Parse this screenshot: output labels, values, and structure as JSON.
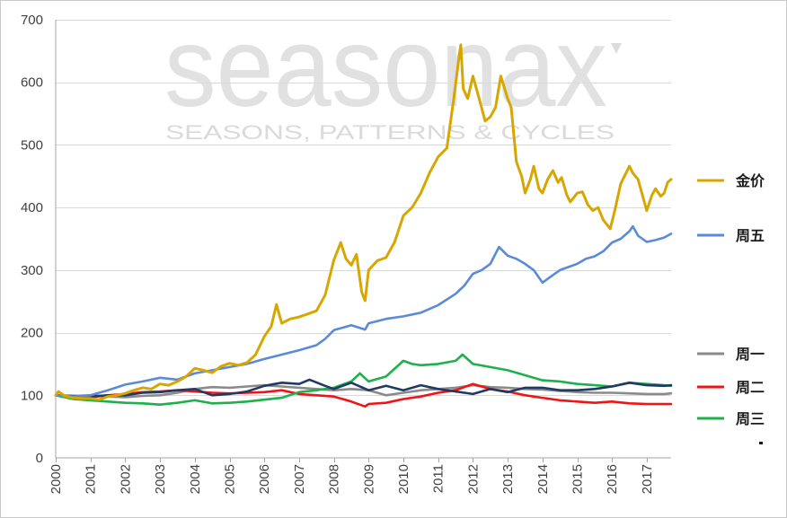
{
  "watermark": {
    "logo": "seasonax",
    "tagline": "SEASONS, PATTERNS & CYCLES"
  },
  "chart_data": {
    "type": "line",
    "title": "",
    "xlabel": "",
    "ylabel": "",
    "xlim": [
      2000,
      2017.7
    ],
    "ylim": [
      0,
      700
    ],
    "y_ticks": [
      0,
      100,
      200,
      300,
      400,
      500,
      600,
      700
    ],
    "x_ticks": [
      "2000",
      "2001",
      "2002",
      "2003",
      "2004",
      "2005",
      "2006",
      "2007",
      "2008",
      "2009",
      "2010",
      "2011",
      "2012",
      "2013",
      "2014",
      "2015",
      "2016",
      "2017"
    ],
    "grid": "horizontal",
    "legend_position": "right",
    "series": [
      {
        "name": "金价",
        "color": "#D8A600",
        "x": [
          2000.0,
          2000.08,
          2000.25,
          2000.5,
          2000.75,
          2001.0,
          2001.25,
          2001.5,
          2001.75,
          2002.0,
          2002.25,
          2002.5,
          2002.75,
          2003.0,
          2003.25,
          2003.5,
          2003.75,
          2004.0,
          2004.25,
          2004.5,
          2004.75,
          2005.0,
          2005.25,
          2005.5,
          2005.75,
          2006.0,
          2006.2,
          2006.35,
          2006.5,
          2006.75,
          2007.0,
          2007.25,
          2007.5,
          2007.75,
          2008.0,
          2008.2,
          2008.35,
          2008.5,
          2008.65,
          2008.8,
          2008.9,
          2009.0,
          2009.25,
          2009.5,
          2009.75,
          2010.0,
          2010.25,
          2010.5,
          2010.75,
          2011.0,
          2011.25,
          2011.45,
          2011.6,
          2011.65,
          2011.72,
          2011.85,
          2012.0,
          2012.2,
          2012.35,
          2012.5,
          2012.65,
          2012.8,
          2013.0,
          2013.1,
          2013.25,
          2013.4,
          2013.5,
          2013.65,
          2013.75,
          2013.9,
          2014.0,
          2014.15,
          2014.3,
          2014.45,
          2014.55,
          2014.7,
          2014.8,
          2015.0,
          2015.15,
          2015.3,
          2015.45,
          2015.6,
          2015.75,
          2015.95,
          2016.1,
          2016.25,
          2016.5,
          2016.6,
          2016.75,
          2016.9,
          2017.0,
          2017.15,
          2017.25,
          2017.4,
          2017.5,
          2017.6,
          2017.7
        ],
        "y": [
          100,
          106,
          99,
          96,
          95,
          95,
          93,
          98,
          100,
          103,
          108,
          112,
          110,
          118,
          116,
          122,
          130,
          143,
          140,
          136,
          146,
          151,
          148,
          152,
          165,
          194,
          210,
          245,
          215,
          222,
          225,
          230,
          235,
          260,
          316,
          344,
          318,
          308,
          325,
          265,
          251,
          300,
          315,
          320,
          345,
          387,
          400,
          423,
          455,
          481,
          495,
          574,
          640,
          660,
          590,
          574,
          610,
          570,
          538,
          545,
          560,
          610,
          574,
          560,
          473,
          450,
          423,
          445,
          466,
          430,
          423,
          445,
          459,
          440,
          448,
          420,
          409,
          423,
          425,
          405,
          395,
          400,
          380,
          366,
          400,
          438,
          466,
          455,
          445,
          415,
          395,
          420,
          430,
          418,
          423,
          440,
          445
        ]
      },
      {
        "name": "周五",
        "color": "#5A8AD8",
        "x": [
          2000.0,
          2000.5,
          2001.0,
          2001.5,
          2002.0,
          2002.5,
          2003.0,
          2003.5,
          2004.0,
          2004.5,
          2005.0,
          2005.5,
          2006.0,
          2006.5,
          2007.0,
          2007.5,
          2007.75,
          2008.0,
          2008.5,
          2008.9,
          2009.0,
          2009.5,
          2010.0,
          2010.5,
          2011.0,
          2011.5,
          2011.75,
          2012.0,
          2012.25,
          2012.5,
          2012.75,
          2013.0,
          2013.25,
          2013.5,
          2013.75,
          2014.0,
          2014.25,
          2014.5,
          2014.75,
          2015.0,
          2015.25,
          2015.5,
          2015.75,
          2016.0,
          2016.25,
          2016.5,
          2016.6,
          2016.75,
          2017.0,
          2017.25,
          2017.5,
          2017.7
        ],
        "y": [
          100,
          98,
          100,
          108,
          117,
          122,
          128,
          125,
          135,
          140,
          145,
          150,
          158,
          165,
          172,
          180,
          190,
          204,
          212,
          205,
          215,
          222,
          226,
          232,
          244,
          262,
          275,
          294,
          300,
          310,
          337,
          323,
          318,
          310,
          300,
          280,
          290,
          300,
          305,
          310,
          318,
          322,
          330,
          344,
          350,
          362,
          370,
          355,
          345,
          348,
          352,
          358
        ]
      },
      {
        "name": "周一",
        "color": "#8A8A8A",
        "x": [
          2000.0,
          2000.5,
          2001.0,
          2001.5,
          2002.0,
          2002.5,
          2003.0,
          2003.5,
          2004.0,
          2004.5,
          2005.0,
          2005.5,
          2006.0,
          2006.5,
          2007.0,
          2007.5,
          2008.0,
          2008.5,
          2009.0,
          2009.5,
          2010.0,
          2010.5,
          2011.0,
          2011.5,
          2012.0,
          2012.5,
          2013.0,
          2013.5,
          2014.0,
          2014.5,
          2015.0,
          2015.5,
          2016.0,
          2016.5,
          2017.0,
          2017.5,
          2017.7
        ],
        "y": [
          100,
          99,
          100,
          98,
          97,
          99,
          100,
          104,
          110,
          113,
          112,
          114,
          116,
          114,
          112,
          110,
          108,
          110,
          108,
          100,
          104,
          108,
          110,
          112,
          116,
          113,
          112,
          110,
          109,
          107,
          105,
          104,
          104,
          103,
          102,
          102,
          103
        ]
      },
      {
        "name": "周二",
        "color": "#F01414",
        "x": [
          2000.0,
          2000.5,
          2001.0,
          2001.5,
          2002.0,
          2002.5,
          2003.0,
          2003.5,
          2004.0,
          2004.5,
          2005.0,
          2005.5,
          2006.0,
          2006.5,
          2007.0,
          2007.5,
          2008.0,
          2008.5,
          2008.9,
          2009.0,
          2009.5,
          2010.0,
          2010.5,
          2011.0,
          2011.5,
          2012.0,
          2012.25,
          2012.5,
          2013.0,
          2013.5,
          2014.0,
          2014.5,
          2015.0,
          2015.5,
          2016.0,
          2016.5,
          2017.0,
          2017.5,
          2017.7
        ],
        "y": [
          100,
          98,
          97,
          100,
          102,
          105,
          106,
          108,
          106,
          104,
          103,
          104,
          105,
          108,
          102,
          100,
          98,
          90,
          82,
          86,
          88,
          94,
          98,
          104,
          108,
          118,
          114,
          110,
          106,
          100,
          96,
          92,
          90,
          88,
          90,
          87,
          86,
          86,
          86
        ]
      },
      {
        "name": "周三",
        "color": "#1DB04B",
        "x": [
          2000.0,
          2000.5,
          2001.0,
          2001.5,
          2002.0,
          2002.5,
          2003.0,
          2003.5,
          2004.0,
          2004.5,
          2005.0,
          2005.5,
          2006.0,
          2006.5,
          2007.0,
          2007.5,
          2008.0,
          2008.5,
          2008.75,
          2009.0,
          2009.5,
          2010.0,
          2010.25,
          2010.5,
          2011.0,
          2011.5,
          2011.7,
          2012.0,
          2012.5,
          2013.0,
          2013.5,
          2014.0,
          2014.5,
          2015.0,
          2015.5,
          2016.0,
          2016.5,
          2017.0,
          2017.5,
          2017.7
        ],
        "y": [
          100,
          94,
          92,
          90,
          88,
          87,
          85,
          88,
          92,
          87,
          88,
          90,
          93,
          96,
          105,
          108,
          112,
          122,
          135,
          122,
          130,
          155,
          150,
          148,
          150,
          155,
          165,
          150,
          145,
          140,
          132,
          124,
          122,
          118,
          116,
          114,
          120,
          118,
          116,
          115
        ]
      },
      {
        "name": "",
        "color": "#1F3A64",
        "x": [
          2000.0,
          2000.5,
          2001.0,
          2001.5,
          2002.0,
          2002.5,
          2003.0,
          2003.5,
          2004.0,
          2004.5,
          2005.0,
          2005.5,
          2006.0,
          2006.5,
          2007.0,
          2007.3,
          2007.75,
          2008.0,
          2008.5,
          2009.0,
          2009.5,
          2010.0,
          2010.5,
          2011.0,
          2011.5,
          2012.0,
          2012.5,
          2013.0,
          2013.5,
          2014.0,
          2014.5,
          2015.0,
          2015.5,
          2016.0,
          2016.5,
          2017.0,
          2017.5,
          2017.7
        ],
        "y": [
          100,
          99,
          98,
          100,
          100,
          104,
          105,
          108,
          110,
          100,
          102,
          106,
          115,
          120,
          118,
          125,
          115,
          110,
          120,
          108,
          115,
          108,
          116,
          110,
          106,
          102,
          110,
          105,
          112,
          112,
          108,
          108,
          110,
          114,
          120,
          116,
          115,
          116
        ]
      }
    ]
  }
}
